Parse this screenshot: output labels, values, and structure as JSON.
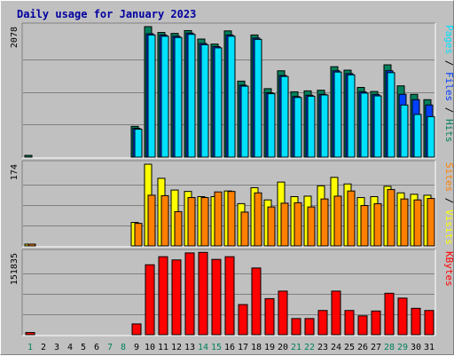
{
  "chart_data": {
    "type": "bar",
    "title": "Daily usage for January 2023",
    "categories": [
      "1",
      "2",
      "3",
      "4",
      "5",
      "6",
      "7",
      "8",
      "9",
      "10",
      "11",
      "12",
      "13",
      "14",
      "15",
      "16",
      "17",
      "18",
      "19",
      "20",
      "21",
      "22",
      "23",
      "24",
      "25",
      "26",
      "27",
      "28",
      "29",
      "30",
      "31"
    ],
    "weekend_days": [
      "1",
      "7",
      "8",
      "14",
      "15",
      "21",
      "22",
      "28",
      "29"
    ],
    "colors": {
      "title": "#0000a0",
      "hits": "#00805c",
      "files": "#0040ff",
      "pages": "#00e0ff",
      "visits": "#ffff00",
      "sites": "#ff8000",
      "kbytes": "#ff0000",
      "weekend_label": "#00805c",
      "weekday_label": "#000000",
      "panel": "#c0c0c0",
      "gridline": "#808080"
    },
    "panels": [
      {
        "id": "hits-files-pages",
        "max_label": "2078",
        "ymax": 2078,
        "legend": [
          {
            "text": "Pages",
            "color": "#00e0ff"
          },
          {
            "text": " / ",
            "color": "#000000"
          },
          {
            "text": "Files",
            "color": "#0040ff"
          },
          {
            "text": " / ",
            "color": "#000000"
          },
          {
            "text": "Hits",
            "color": "#00805c"
          }
        ],
        "series": [
          {
            "name": "Hits",
            "color": "#00805c",
            "values": [
              8,
              0,
              0,
              0,
              0,
              0,
              0,
              0,
              490,
              2078,
              1985,
              1970,
              2015,
              1880,
              1800,
              2010,
              1210,
              1945,
              1090,
              1375,
              1040,
              1055,
              1065,
              1440,
              1385,
              1110,
              1045,
              1470,
              1135,
              1000,
              915
            ]
          },
          {
            "name": "Files",
            "color": "#0040ff",
            "values": [
              0,
              0,
              0,
              0,
              0,
              0,
              0,
              0,
              460,
              1965,
              1945,
              1925,
              1975,
              1810,
              1760,
              1945,
              1145,
              1895,
              1025,
              1300,
              965,
              985,
              1000,
              1375,
              1330,
              1040,
              995,
              1375,
              1000,
              915,
              830
            ]
          },
          {
            "name": "Pages",
            "color": "#00e0ff",
            "values": [
              0,
              0,
              0,
              0,
              0,
              0,
              0,
              0,
              445,
              1945,
              1925,
              1905,
              1955,
              1790,
              1740,
              1925,
              1130,
              1875,
              1010,
              1285,
              950,
              970,
              990,
              1355,
              1310,
              1020,
              975,
              1345,
              830,
              680,
              645
            ]
          }
        ]
      },
      {
        "id": "visits-sites",
        "max_label": "174",
        "ymax": 174,
        "legend": [
          {
            "text": "Sites",
            "color": "#ff8000"
          },
          {
            "text": " / ",
            "color": "#000000"
          },
          {
            "text": "Visits",
            "color": "#ffff00"
          }
        ],
        "series": [
          {
            "name": "Visits",
            "color": "#ffff00",
            "values": [
              3,
              0,
              0,
              0,
              0,
              0,
              0,
              0,
              50,
              174,
              144,
              119,
              116,
              105,
              105,
              117,
              90,
              124,
              98,
              136,
              105,
              106,
              128,
              146,
              132,
              103,
              105,
              127,
              113,
              110,
              108
            ]
          },
          {
            "name": "Sites",
            "color": "#ff8000",
            "values": [
              3,
              0,
              0,
              0,
              0,
              0,
              0,
              0,
              48,
              108,
              107,
              73,
              103,
              103,
              115,
              116,
              72,
              113,
              83,
              91,
              92,
              83,
              100,
              106,
              117,
              86,
              90,
              120,
              100,
              98,
              101
            ]
          }
        ]
      },
      {
        "id": "kbytes",
        "max_label": "151835",
        "ymax": 151835,
        "legend": [
          {
            "text": "KBytes",
            "color": "#ff0000"
          }
        ],
        "series": [
          {
            "name": "KBytes",
            "color": "#ff0000",
            "values": [
              4000,
              0,
              0,
              0,
              0,
              0,
              0,
              0,
              20000,
              130000,
              145000,
              139000,
              152000,
              153000,
              140000,
              145000,
              56000,
              124000,
              67000,
              81000,
              30000,
              30000,
              45000,
              81000,
              45000,
              35000,
              44000,
              77000,
              68000,
              49000,
              45000
            ]
          }
        ]
      }
    ]
  }
}
